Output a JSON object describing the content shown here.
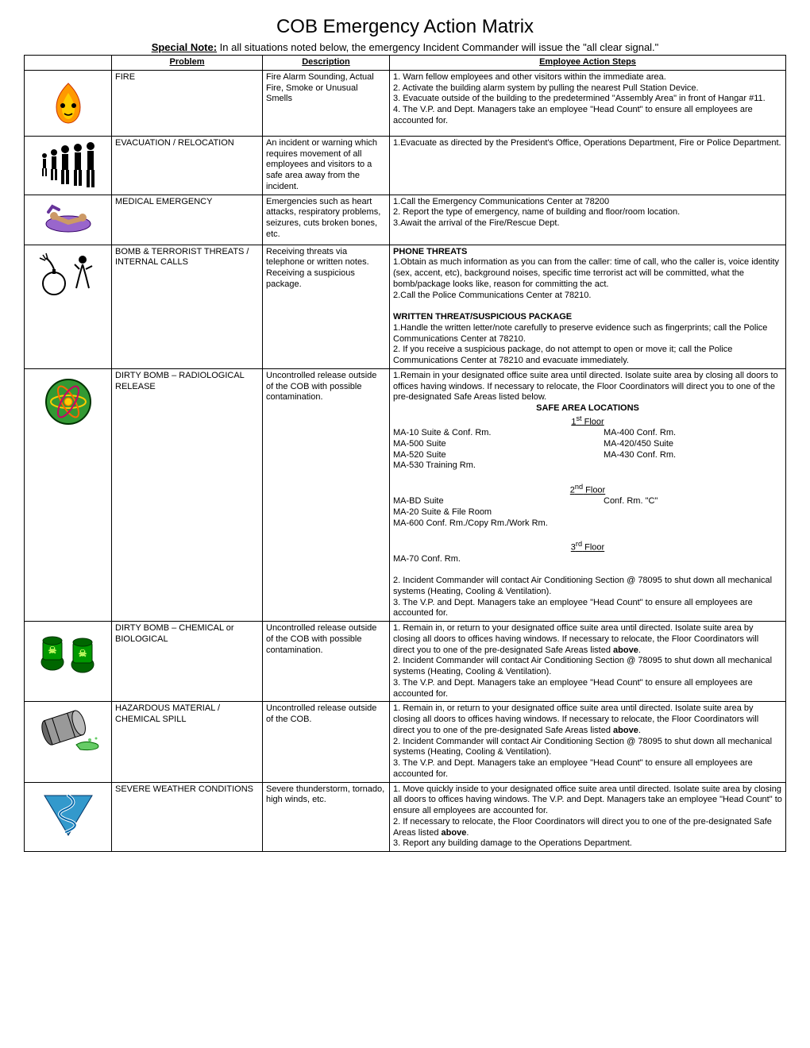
{
  "title": "COB Emergency Action Matrix",
  "special_note_label": "Special Note:",
  "special_note_text": " In all situations noted below, the emergency Incident Commander will issue the \"all clear signal.\"",
  "headers": {
    "problem": "Problem",
    "description": "Description",
    "steps": "Employee Action Steps"
  },
  "rows": [
    {
      "icon": "fire",
      "problem": "FIRE",
      "description": "Fire Alarm Sounding, Actual Fire, Smoke or Unusual Smells",
      "steps_html": "1. Warn fellow employees and other visitors within the immediate area.<br>2. Activate the building alarm system by pulling the nearest Pull Station Device.<br>3. Evacuate outside of the building to the predetermined \"Assembly Area\" in front of Hangar #11.<br>4. The V.P. and Dept. Managers take an employee \"Head Count\" to ensure all employees are accounted for."
    },
    {
      "icon": "evacuation",
      "problem": "EVACUATION / RELOCATION",
      "description": "An incident or warning which requires movement of all employees and visitors to a safe area away from the incident.",
      "steps_html": "1.Evacuate as directed by the President's Office, Operations Department, Fire or Police Department."
    },
    {
      "icon": "medical",
      "problem": "MEDICAL EMERGENCY",
      "description": "Emergencies such as heart attacks, respiratory problems, seizures, cuts broken bones, etc.",
      "steps_html": "1.Call the Emergency Communications Center at 78200<br>2. Report the type of emergency, name of building and floor/room location.<br>3.Await the arrival of the Fire/Rescue Dept."
    },
    {
      "icon": "bomb",
      "problem": "BOMB & TERRORIST THREATS / INTERNAL CALLS",
      "description": "Receiving threats via telephone or written notes. Receiving a suspicious package.",
      "steps_html": "<span class=\"bold\">PHONE THREATS</span><br>1.Obtain as much information as you can from the caller: time of call, who the caller is, voice identity (sex, accent, etc), background noises, specific time terrorist act will be committed, what the bomb/package looks like, reason for committing the act.<br>2.Call the Police Communications Center at 78210.<br><br><span class=\"bold\">WRITTEN THREAT/SUSPICIOUS PACKAGE</span><br>1.Handle the written letter/note carefully to preserve evidence such as fingerprints; call the Police Communications Center at 78210.<br>2. If you receive a suspicious package, do not attempt to open or move it; call the Police Communications Center at 78210 and evacuate immediately."
    },
    {
      "icon": "radiological",
      "problem": "DIRTY BOMB – RADIOLOGICAL RELEASE",
      "description": "Uncontrolled release outside of the COB with possible contamination.",
      "steps_html": "1.Remain in your designated office suite area until directed.  Isolate suite area by closing all doors to offices having windows.  If necessary to relocate, the Floor Coordinators will direct you to one of the pre-designated Safe Areas listed below.<br><div class=\"center bold\">SAFE AREA LOCATIONS</div><div class=\"center underline\">1<sup>st</sup> Floor</div><div class=\"safe-cols\"><div>MA-10 Suite & Conf. Rm.<br>MA-500 Suite<br>MA-520 Suite<br>MA-530 Training Rm.</div><div>MA-400 Conf. Rm.<br>MA-420/450 Suite<br>MA-430 Conf. Rm.</div></div><br><div class=\"center underline\">2<sup>nd</sup> Floor</div><div class=\"safe-cols\"><div>MA-BD Suite<br>MA-20 Suite & File Room<br>MA-600 Conf. Rm./Copy Rm./Work Rm.</div><div>Conf. Rm. \"C\"</div></div><br><div class=\"center underline\">3<sup>rd</sup> Floor</div>MA-70 Conf. Rm.<br><br>2. Incident Commander will contact Air Conditioning Section @ 78095 to shut down all mechanical systems (Heating, Cooling & Ventilation).<br>3. The V.P. and Dept. Managers take an employee \"Head Count\" to ensure all employees are accounted for."
    },
    {
      "icon": "biohazard",
      "problem": "DIRTY BOMB – CHEMICAL or BIOLOGICAL",
      "description": "Uncontrolled release outside of the COB with possible contamination.",
      "steps_html": "1. Remain in, or return to your designated office suite area until directed.  Isolate suite area by closing all doors to offices having windows.  If necessary to relocate, the Floor Coordinators will direct you to one of the pre-designated Safe Areas listed <span class=\"bold\">above</span>.<br>2. Incident Commander will contact Air Conditioning Section @ 78095 to shut down all mechanical systems (Heating, Cooling & Ventilation).<br>3. The V.P. and Dept. Managers take an employee \"Head Count\" to ensure all employees are accounted for."
    },
    {
      "icon": "spill",
      "problem": "HAZARDOUS MATERIAL / CHEMICAL SPILL",
      "description": "Uncontrolled release outside of the COB.",
      "steps_html": "1.  Remain in, or return to your designated office suite area until directed.  Isolate suite area by closing all doors to offices having windows.  If necessary to relocate, the Floor Coordinators will direct you to one of the pre-designated Safe Areas listed <span class=\"bold\">above</span>.<br>2. Incident Commander will contact Air Conditioning Section @ 78095 to shut down all mechanical systems (Heating, Cooling & Ventilation).<br>3. The V.P. and Dept. Managers take an employee \"Head Count\" to ensure all employees are accounted for."
    },
    {
      "icon": "tornado",
      "problem": "SEVERE WEATHER CONDITIONS",
      "description": "Severe thunderstorm, tornado, high winds, etc.",
      "steps_html": "1. Move quickly inside to your designated office suite area until directed.  Isolate suite area by closing all doors to offices having windows.  The V.P. and Dept. Managers take an employee \"Head Count\" to ensure all employees are accounted for.<br>2.  If necessary to relocate, the Floor Coordinators will direct you to one of the pre-designated Safe Areas listed <span class=\"bold\">above</span>.<br>3. Report any building damage to the Operations Department."
    }
  ],
  "icons": {
    "fire": "<svg width='70' height='70' viewBox='0 0 70 70'><path d='M35 10 C 25 20 20 30 20 40 C20 52 27 60 35 60 C43 60 50 52 50 40 C50 30 45 20 35 10 Z' fill='#ff9900' stroke='#cc3300' stroke-width='1'/><path d='M35 22 C30 30 27 36 27 42 C27 50 31 55 35 55 C39 55 43 50 43 42 C43 36 40 30 35 22 Z' fill='#ffcc00'/><circle cx='28' cy='38' r='3' fill='#000'/><circle cx='42' cy='38' r='3' fill='#000'/><path d='M30 48 Q35 52 40 48' stroke='#000' stroke-width='1.5' fill='none'/></svg>",
    "evacuation": "<svg width='80' height='60' viewBox='0 0 80 60'><g fill='#000'><circle cx='10' cy='18' r='3'/><rect x='8' y='22' width='4' height='12'/><rect x='7' y='34' width='2' height='10'/><rect x='11' y='34' width='2' height='10'/><circle cx='22' cy='14' r='4'/><rect x='19' y='19' width='6' height='16'/><rect x='18' y='35' width='3' height='14'/><rect x='23' y='35' width='3' height='14'/><circle cx='36' cy='10' r='5'/><rect x='32' y='16' width='8' height='20'/><rect x='31' y='36' width='4' height='18'/><rect x='37' y='36' width='4' height='18'/><circle cx='52' cy='8' r='5'/><rect x='48' y='14' width='8' height='22'/><rect x='47' y='36' width='4' height='20'/><rect x='53' y='36' width='4' height='20'/><circle cx='68' cy='6' r='5'/><rect x='64' y='12' width='8' height='24'/><rect x='63' y='36' width='4' height='22'/><rect x='69' y='36' width='4' height='22'/></g></svg>",
    "medical": "<svg width='80' height='50' viewBox='0 0 80 50'><ellipse cx='40' cy='30' rx='28' ry='10' fill='#9966cc' stroke='#330066'/><circle cx='22' cy='20' r='5' fill='#cc9966'/><path d='M25 22 L40 28 L55 24' stroke='#cc9966' stroke-width='6' fill='none' stroke-linecap='round'/><circle cx='58' cy='22' r='5' fill='#cc9966'/><path d='M15 15 L20 8 L28 12' stroke='#663399' stroke-width='4' fill='none' stroke-linecap='round'/></svg>",
    "bomb": "<svg width='80' height='60' viewBox='0 0 80 60'><circle cx='22' cy='42' r='14' fill='none' stroke='#000' stroke-width='2'/><rect x='20' y='24' width='4' height='6' fill='#000'/><path d='M22 24 Q18 14 12 10' stroke='#000' stroke-width='2' fill='none'/><g stroke='#000' stroke-width='1.5'><line x1='8' y1='6' x2='12' y2='12'/><line x1='12' y1='4' x2='14' y2='11'/><line x1='4' y1='10' x2='11' y2='13'/></g><circle cx='58' cy='12' r='5' fill='#000'/><path d='M58 18 L54 32 L50 48 M58 18 L62 32 L66 48 M54 24 L48 18 M62 24 L70 20' stroke='#000' stroke-width='2' fill='none'/></svg>",
    "radiological": "<svg width='70' height='70' viewBox='0 0 70 70'><circle cx='35' cy='35' r='28' fill='#339933' stroke='#003300' stroke-width='2'/><g transform='translate(35,35)'><ellipse rx='22' ry='8' fill='none' stroke='#ffcc00' stroke-width='2'/><ellipse rx='22' ry='8' fill='none' stroke='#ff6600' stroke-width='2' transform='rotate(60)'/><ellipse rx='22' ry='8' fill='none' stroke='#cc0066' stroke-width='2' transform='rotate(120)'/><circle r='5' fill='#ffcc00' stroke='#ff6600'/></g></svg>",
    "biohazard": "<svg width='80' height='60' viewBox='0 0 80 60'><g><ellipse cx='20' cy='45' rx='14' ry='10' fill='#006600' stroke='#003300' stroke-width='1'/><rect x='8' y='18' width='24' height='24' rx='3' fill='#009900' stroke='#003300'/><ellipse cx='20' cy='18' rx='12' ry='5' fill='#006600' stroke='#003300'/><text x='20' y='34' text-anchor='middle' fill='#ccff66' font-size='12' font-weight='bold'>☠</text></g><g transform='translate(30,0)'><ellipse cx='28' cy='48' rx='14' ry='10' fill='#006600' stroke='#003300'/><rect x='16' y='20' width='24' height='26' rx='3' fill='#009900' stroke='#003300'/><ellipse cx='28' cy='20' rx='12' ry='5' fill='#006600' stroke='#003300'/><text x='28' y='38' text-anchor='middle' fill='#ccff66' font-size='12' font-weight='bold'>☠</text></g></svg>",
    "spill": "<svg width='90' height='60' viewBox='0 0 90 60'><g transform='rotate(-18 35 30)'><ellipse cx='20' cy='28' rx='7' ry='16' fill='#666' stroke='#000'/><rect x='20' y='12' width='40' height='32' fill='#999' stroke='#000'/><ellipse cx='60' cy='28' rx='7' ry='16' fill='#bbb' stroke='#000'/><line x1='30' y1='12' x2='30' y2='44' stroke='#000'/><line x1='50' y1='12' x2='50' y2='44' stroke='#000'/></g><path d='M55 48 Q65 42 78 46 Q85 48 82 52 Q75 56 60 54 Z' fill='#66cc66' stroke='#006600'/><circle cx='72' cy='42' r='2' fill='#66cc66'/><circle cx='80' cy='40' r='1.5' fill='#66cc66'/></svg>",
    "tornado": "<svg width='70' height='70' viewBox='0 0 70 70'><polygon points='5,10 65,10 35,60' fill='#3399cc' stroke='#003366' stroke-width='1'/><path d='M35 10 Q50 20 30 28 Q15 35 38 42 Q52 48 32 56' stroke='#fff' stroke-width='4' fill='none' stroke-linecap='round'/><path d='M35 10 Q50 20 30 28 Q15 35 38 42 Q52 48 32 56' stroke='#0066aa' stroke-width='2' fill='none' stroke-linecap='round'/></svg>"
  }
}
